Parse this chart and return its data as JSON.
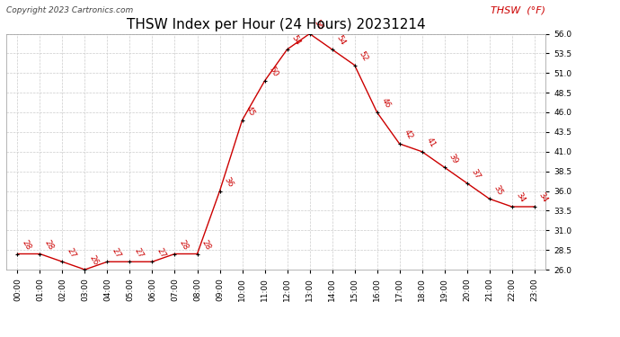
{
  "title": "THSW Index per Hour (24 Hours) 20231214",
  "copyright": "Copyright 2023 Cartronics.com",
  "legend_label": "THSW  (°F)",
  "hours": [
    0,
    1,
    2,
    3,
    4,
    5,
    6,
    7,
    8,
    9,
    10,
    11,
    12,
    13,
    14,
    15,
    16,
    17,
    18,
    19,
    20,
    21,
    22,
    23
  ],
  "values": [
    28,
    28,
    27,
    26,
    27,
    27,
    27,
    28,
    28,
    36,
    45,
    50,
    54,
    56,
    54,
    52,
    46,
    42,
    41,
    39,
    37,
    35,
    34,
    34
  ],
  "line_color": "#cc0000",
  "marker_color": "#000000",
  "label_color": "#cc0000",
  "grid_color": "#cccccc",
  "bg_color": "#ffffff",
  "title_fontsize": 11,
  "copyright_fontsize": 6.5,
  "legend_fontsize": 8,
  "label_fontsize": 6.5,
  "tick_fontsize": 6.5,
  "ylim": [
    26.0,
    56.0
  ],
  "yticks": [
    26.0,
    28.5,
    31.0,
    33.5,
    36.0,
    38.5,
    41.0,
    43.5,
    46.0,
    48.5,
    51.0,
    53.5,
    56.0
  ]
}
